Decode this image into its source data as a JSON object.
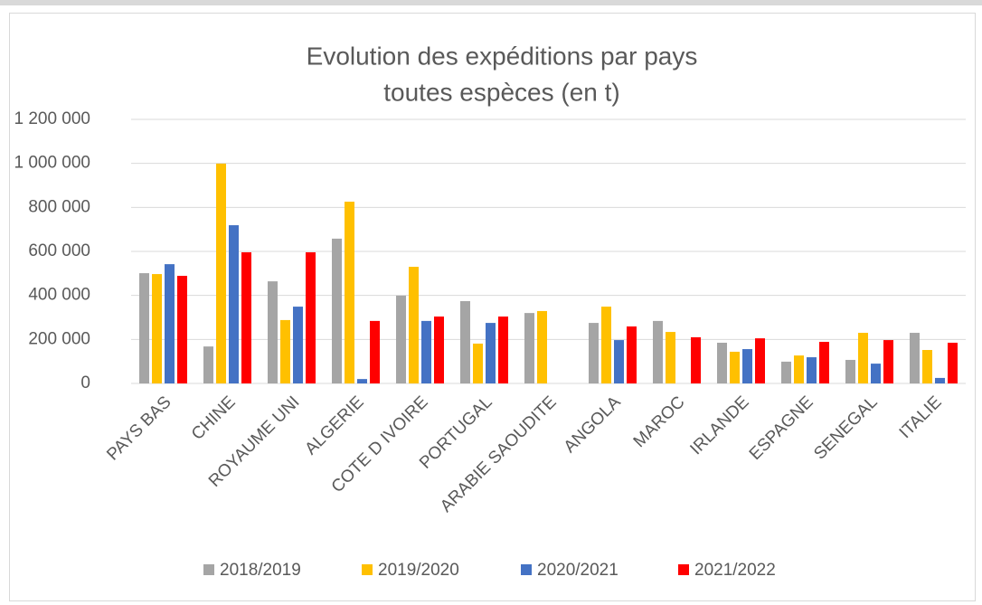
{
  "chart_data": {
    "type": "bar",
    "title": "Evolution des expéditions par pays",
    "subtitle": "toutes espèces (en t)",
    "categories": [
      "PAYS BAS",
      "CHINE",
      "ROYAUME UNI",
      "ALGERIE",
      "COTE D IVOIRE",
      "PORTUGAL",
      "ARABIE SAOUDITE",
      "ANGOLA",
      "MAROC",
      "IRLANDE",
      "ESPAGNE",
      "SENEGAL",
      "ITALIE"
    ],
    "series": [
      {
        "name": "2018/2019",
        "color": "#a5a5a5",
        "values": [
          501000,
          168000,
          464000,
          658000,
          399000,
          374000,
          320000,
          275000,
          284000,
          185000,
          99000,
          107000,
          230000
        ]
      },
      {
        "name": "2019/2020",
        "color": "#ffc000",
        "values": [
          497000,
          999000,
          288000,
          826000,
          530000,
          181000,
          329000,
          349000,
          234000,
          144000,
          127000,
          230000,
          152000
        ]
      },
      {
        "name": "2020/2021",
        "color": "#4472c4",
        "values": [
          542000,
          719000,
          349000,
          20000,
          284000,
          275000,
          null,
          197000,
          null,
          156000,
          119000,
          90000,
          25000
        ]
      },
      {
        "name": "2021/2022",
        "color": "#ff0000",
        "values": [
          489000,
          596000,
          596000,
          284000,
          304000,
          304000,
          null,
          259000,
          210000,
          205000,
          189000,
          197000,
          185000
        ]
      }
    ],
    "ylim": [
      0,
      1200000
    ],
    "yticks": [
      0,
      {
        "value": 200000,
        "label": "200 000"
      },
      {
        "value": 400000,
        "label": "400 000"
      },
      {
        "value": 600000,
        "label": "600 000"
      },
      {
        "value": 800000,
        "label": "800 000"
      },
      {
        "value": 1000000,
        "label": "1 000 000"
      },
      {
        "value": 1200000,
        "label": "1 200 000"
      }
    ],
    "grid": true,
    "legend": "bottom"
  }
}
